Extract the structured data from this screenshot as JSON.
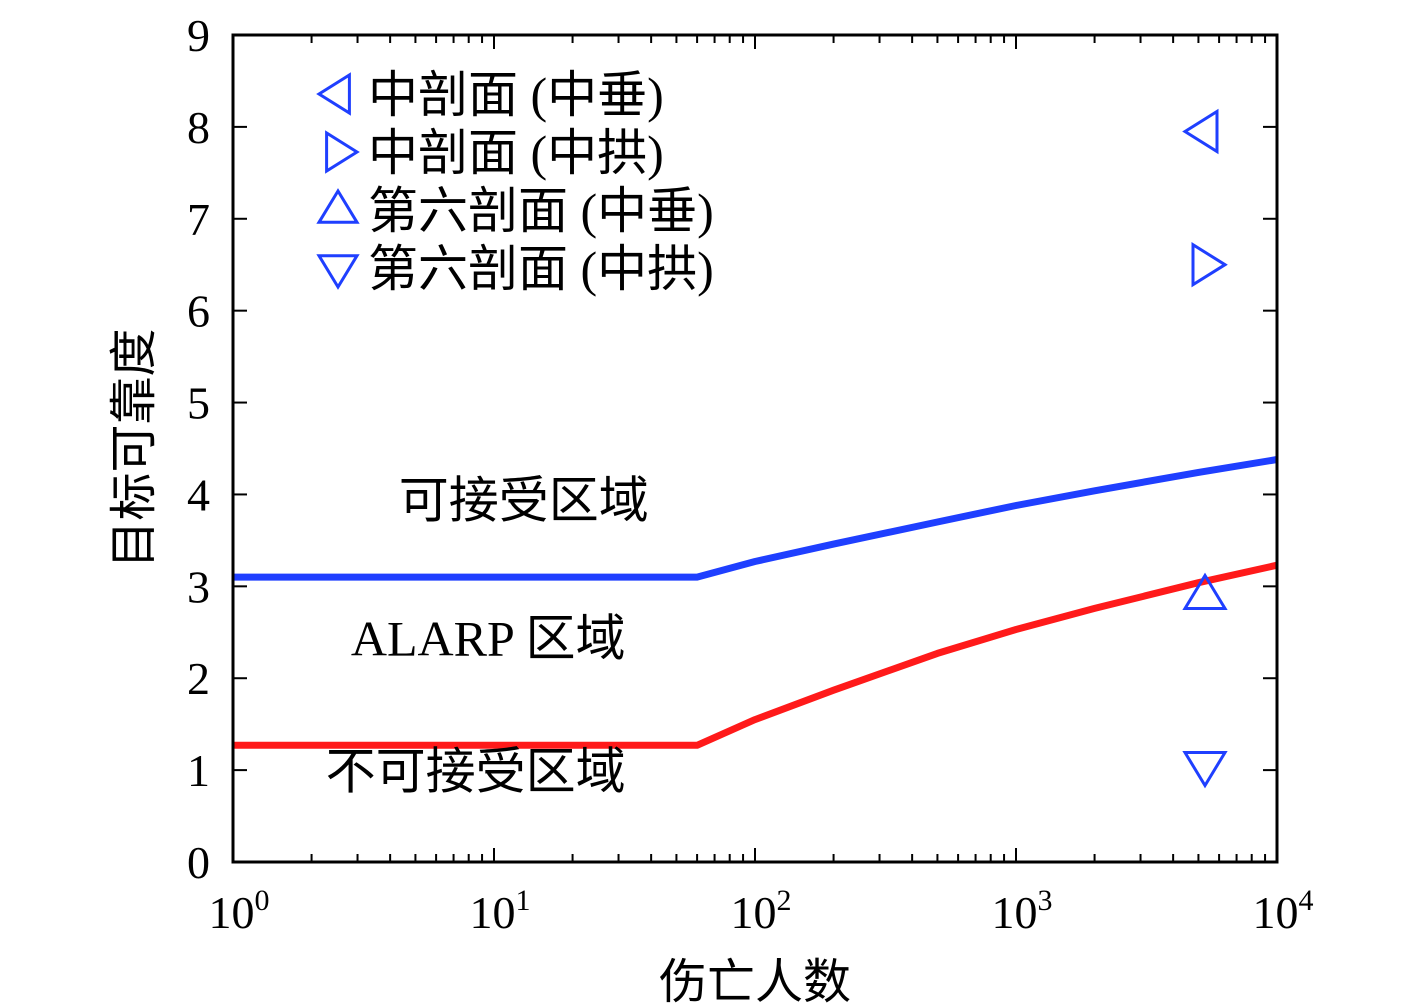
{
  "chart_data": {
    "type": "line",
    "xlabel": "伤亡人数",
    "ylabel": "目标可靠度",
    "xscale": "log",
    "xlim": [
      1,
      10000
    ],
    "ylim": [
      0,
      9
    ],
    "grid": false,
    "x_ticks": [
      {
        "base": "10",
        "exp": "0",
        "value": 1
      },
      {
        "base": "10",
        "exp": "1",
        "value": 10
      },
      {
        "base": "10",
        "exp": "2",
        "value": 100
      },
      {
        "base": "10",
        "exp": "3",
        "value": 1000
      },
      {
        "base": "10",
        "exp": "4",
        "value": 10000
      }
    ],
    "y_ticks": [
      "0",
      "1",
      "2",
      "3",
      "4",
      "5",
      "6",
      "7",
      "8",
      "9"
    ],
    "series": [
      {
        "color": "#1f3fff",
        "x": [
          1,
          60,
          100,
          200,
          500,
          1000,
          2000,
          5000,
          10000
        ],
        "y": [
          3.1,
          3.1,
          3.27,
          3.46,
          3.7,
          3.88,
          4.04,
          4.24,
          4.38
        ]
      },
      {
        "color": "#ff1a1a",
        "x": [
          1,
          60,
          100,
          200,
          500,
          1000,
          2000,
          5000,
          10000
        ],
        "y": [
          1.27,
          1.27,
          1.55,
          1.87,
          2.27,
          2.53,
          2.76,
          3.04,
          3.23
        ]
      }
    ],
    "points": [
      {
        "label": "中剖面 (中垂)",
        "marker": "triangle-left",
        "x": 5300,
        "y": 7.95
      },
      {
        "label": "中剖面 (中拱)",
        "marker": "triangle-right",
        "x": 5300,
        "y": 6.5
      },
      {
        "label": "第六剖面 (中垂)",
        "marker": "triangle-up",
        "x": 5300,
        "y": 2.9
      },
      {
        "label": "第六剖面 (中拱)",
        "marker": "triangle-down",
        "x": 5300,
        "y": 1.05
      }
    ],
    "marker_color": "#1f3fff",
    "legend_position": "top-left",
    "annotations": [
      {
        "text": "可接受区域",
        "x": 13,
        "y": 3.75
      },
      {
        "text": "ALARP 区域",
        "x": 9.5,
        "y": 2.25
      },
      {
        "text": "不可接受区域",
        "x": 8.5,
        "y": 0.8
      }
    ]
  }
}
